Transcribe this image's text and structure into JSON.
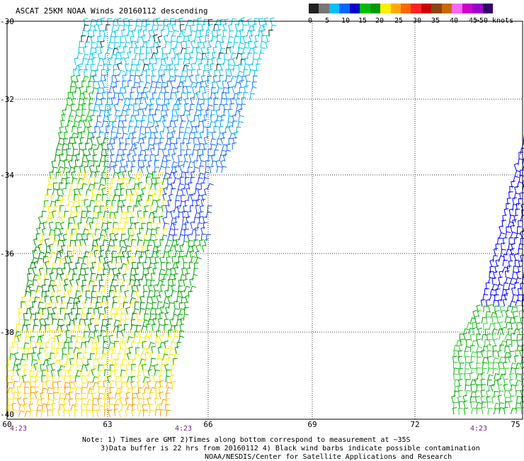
{
  "title": "ASCAT 25KM NOAA Winds 20160112 descending",
  "legend": {
    "colors": [
      "#222222",
      "#777777",
      "#00bfff",
      "#0066ff",
      "#0000cc",
      "#00bb00",
      "#009900",
      "#ffee00",
      "#ffaa00",
      "#ff6600",
      "#ff2222",
      "#cc0000",
      "#8b4513",
      "#cc6600",
      "#ff66ff",
      "#cc00cc",
      "#9900cc",
      "#330066"
    ],
    "labels": [
      "0",
      "5",
      "10",
      "15",
      "20",
      "25",
      "30",
      "35",
      "40",
      "45",
      ">50 knots"
    ]
  },
  "y_axis": [
    "-30",
    "-32",
    "-34",
    "-36",
    "-38",
    "-40"
  ],
  "x_axis": [
    "60",
    "63",
    "66",
    "69",
    "72",
    "75"
  ],
  "time_labels": [
    "4:23",
    "4:23",
    "4:23"
  ],
  "notes": [
    "Note: 1) Times are GMT 2)Times along bottom correspond to measurement at ~35S",
    "3)Data buffer is 22 hrs from 20160112 4) Black wind barbs indicate possible contamination",
    "NOAA/NESDIS/Center for Satellite Applications and Research"
  ]
}
